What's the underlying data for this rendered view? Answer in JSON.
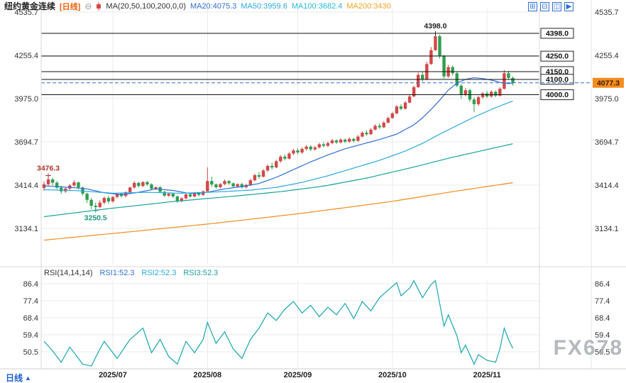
{
  "header": {
    "symbol": "纽约黄金连续",
    "period_tag": "[日线]",
    "period_color": "#ee5f0a",
    "collapse_icon": "⊖",
    "ma_settings": "MA(20,50,100,200,0,0)",
    "ma_values": [
      {
        "label": "MA20:4075.3",
        "color": "#2f6fd4"
      },
      {
        "label": "MA50:3959.6",
        "color": "#29a9e0"
      },
      {
        "label": "MA100:3682.4",
        "color": "#25b8d8"
      },
      {
        "label": "MA200:3430",
        "color": "#f5a421"
      }
    ]
  },
  "toolbar": {
    "icons": [
      {
        "name": "grid-layout-icon",
        "glyph": "⊞"
      },
      {
        "name": "split-layout-icon",
        "glyph": "⊟"
      },
      {
        "name": "panel-layout-icon",
        "glyph": "◫"
      },
      {
        "name": "collapse-panel-icon",
        "glyph": "▶"
      }
    ]
  },
  "rsi_header": {
    "title": "RSI(14,14,14)",
    "values": [
      {
        "label": "RSI1:52.3",
        "color": "#2f6fd4"
      },
      {
        "label": "RSI2:52.3",
        "color": "#29a9e0"
      },
      {
        "label": "RSI3:52.3",
        "color": "#17a29b"
      }
    ]
  },
  "bottom_tab": {
    "label": "日线",
    "arrow": "▲"
  },
  "watermark": "FX678",
  "chart_data": {
    "type": "candlestick",
    "symbol": "纽约黄金连续",
    "period": "日线",
    "x_labels": [
      "2025/07",
      "2025/08",
      "2025/09",
      "2025/10",
      "2025/11"
    ],
    "x_label_indices": [
      16,
      38,
      59,
      81,
      103
    ],
    "price_axis_ticks": [
      "4535.7",
      "4255.4",
      "3975.0",
      "3694.7",
      "3414.4",
      "3134.1"
    ],
    "hlines": [
      "4398.0",
      "4250.0",
      "4150.0",
      "4100.0",
      "4000.0"
    ],
    "current_price": "4077.3",
    "colors": {
      "up": "#d34848",
      "down": "#2f9e50",
      "grid": "#ebebeb",
      "hline": "#111111",
      "current": "#2f6fd4",
      "current_bg": "#f78c1f"
    },
    "candles_ohlc": [
      [
        3395,
        3440,
        3378,
        3420
      ],
      [
        3420,
        3476.3,
        3408,
        3452
      ],
      [
        3452,
        3462,
        3414,
        3430
      ],
      [
        3430,
        3441,
        3388,
        3398
      ],
      [
        3398,
        3410,
        3358,
        3374
      ],
      [
        3374,
        3401,
        3364,
        3392
      ],
      [
        3392,
        3422,
        3380,
        3412
      ],
      [
        3412,
        3446,
        3404,
        3432
      ],
      [
        3432,
        3436,
        3388,
        3399
      ],
      [
        3399,
        3405,
        3348,
        3359
      ],
      [
        3359,
        3366,
        3299,
        3319
      ],
      [
        3319,
        3331,
        3259,
        3281
      ],
      [
        3281,
        3301,
        3250.5,
        3272
      ],
      [
        3272,
        3316,
        3264,
        3301
      ],
      [
        3301,
        3341,
        3289,
        3331
      ],
      [
        3331,
        3346,
        3294,
        3309
      ],
      [
        3309,
        3344,
        3301,
        3338
      ],
      [
        3338,
        3365,
        3328,
        3359
      ],
      [
        3359,
        3366,
        3334,
        3344
      ],
      [
        3344,
        3374,
        3336,
        3369
      ],
      [
        3369,
        3404,
        3360,
        3399
      ],
      [
        3399,
        3440,
        3391,
        3429
      ],
      [
        3429,
        3436,
        3399,
        3409
      ],
      [
        3409,
        3440,
        3401,
        3434
      ],
      [
        3434,
        3441,
        3409,
        3419
      ],
      [
        3419,
        3426,
        3381,
        3391
      ],
      [
        3391,
        3406,
        3382,
        3401
      ],
      [
        3401,
        3407,
        3362,
        3371
      ],
      [
        3371,
        3377,
        3337,
        3346
      ],
      [
        3346,
        3366,
        3338,
        3359
      ],
      [
        3359,
        3365,
        3331,
        3341
      ],
      [
        3341,
        3347,
        3301,
        3311
      ],
      [
        3311,
        3336,
        3303,
        3329
      ],
      [
        3329,
        3360,
        3321,
        3354
      ],
      [
        3354,
        3361,
        3332,
        3341
      ],
      [
        3341,
        3371,
        3334,
        3364
      ],
      [
        3364,
        3370,
        3341,
        3351
      ],
      [
        3351,
        3381,
        3344,
        3374
      ],
      [
        3374,
        3530,
        3368,
        3441
      ],
      [
        3441,
        3469,
        3403,
        3419
      ],
      [
        3419,
        3426,
        3391,
        3401
      ],
      [
        3401,
        3427,
        3393,
        3421
      ],
      [
        3421,
        3451,
        3414,
        3441
      ],
      [
        3441,
        3447,
        3417,
        3426
      ],
      [
        3426,
        3431,
        3397,
        3406
      ],
      [
        3406,
        3426,
        3398,
        3421
      ],
      [
        3421,
        3429,
        3391,
        3401
      ],
      [
        3401,
        3423,
        3393,
        3416
      ],
      [
        3416,
        3456,
        3409,
        3446
      ],
      [
        3446,
        3489,
        3439,
        3479
      ],
      [
        3479,
        3499,
        3456,
        3469
      ],
      [
        3469,
        3519,
        3464,
        3509
      ],
      [
        3509,
        3549,
        3499,
        3539
      ],
      [
        3539,
        3559,
        3516,
        3529
      ],
      [
        3529,
        3579,
        3524,
        3569
      ],
      [
        3569,
        3609,
        3559,
        3599
      ],
      [
        3599,
        3614,
        3574,
        3586
      ],
      [
        3586,
        3629,
        3581,
        3619
      ],
      [
        3619,
        3649,
        3609,
        3639
      ],
      [
        3639,
        3654,
        3614,
        3626
      ],
      [
        3626,
        3659,
        3618,
        3649
      ],
      [
        3649,
        3674,
        3639,
        3664
      ],
      [
        3664,
        3671,
        3634,
        3646
      ],
      [
        3646,
        3669,
        3638,
        3659
      ],
      [
        3659,
        3689,
        3651,
        3679
      ],
      [
        3679,
        3694,
        3659,
        3669
      ],
      [
        3669,
        3697,
        3661,
        3687
      ],
      [
        3687,
        3714,
        3679,
        3704
      ],
      [
        3704,
        3711,
        3681,
        3691
      ],
      [
        3691,
        3719,
        3684,
        3709
      ],
      [
        3709,
        3717,
        3687,
        3696
      ],
      [
        3696,
        3724,
        3689,
        3714
      ],
      [
        3714,
        3721,
        3691,
        3701
      ],
      [
        3701,
        3739,
        3694,
        3729
      ],
      [
        3729,
        3764,
        3724,
        3754
      ],
      [
        3754,
        3769,
        3734,
        3744
      ],
      [
        3744,
        3784,
        3739,
        3774
      ],
      [
        3774,
        3809,
        3769,
        3799
      ],
      [
        3799,
        3814,
        3779,
        3789
      ],
      [
        3789,
        3829,
        3784,
        3819
      ],
      [
        3819,
        3859,
        3814,
        3849
      ],
      [
        3849,
        3889,
        3844,
        3879
      ],
      [
        3879,
        3934,
        3874,
        3924
      ],
      [
        3924,
        3939,
        3899,
        3909
      ],
      [
        3909,
        3959,
        3904,
        3949
      ],
      [
        3949,
        3999,
        3944,
        3989
      ],
      [
        3989,
        4059,
        3984,
        4049
      ],
      [
        4049,
        4144,
        4044,
        4129
      ],
      [
        4129,
        4149,
        4084,
        4099
      ],
      [
        4099,
        4214,
        4094,
        4199
      ],
      [
        4199,
        4309,
        4194,
        4289
      ],
      [
        4289,
        4398,
        4284,
        4379
      ],
      [
        4379,
        4389,
        4234,
        4249
      ],
      [
        4249,
        4259,
        4104,
        4119
      ],
      [
        4119,
        4194,
        4109,
        4179
      ],
      [
        4179,
        4189,
        4124,
        4139
      ],
      [
        4139,
        4149,
        4049,
        4059
      ],
      [
        4059,
        4069,
        3974,
        3999
      ],
      [
        3999,
        4044,
        3989,
        4029
      ],
      [
        4029,
        4039,
        3954,
        3969
      ],
      [
        3969,
        3984,
        3886,
        3939
      ],
      [
        3939,
        3994,
        3929,
        3984
      ],
      [
        3984,
        4019,
        3974,
        4009
      ],
      [
        4009,
        4024,
        3979,
        3989
      ],
      [
        3989,
        4029,
        3981,
        4019
      ],
      [
        4019,
        4027,
        3984,
        3994
      ],
      [
        3994,
        4049,
        3987,
        4039
      ],
      [
        4039,
        4159,
        4034,
        4139
      ],
      [
        4139,
        4154,
        4099,
        4109
      ],
      [
        4109,
        4119,
        4059,
        4077.3
      ]
    ],
    "ma_lines": [
      {
        "name": "MA20",
        "color": "#2f6fd4",
        "points": [
          [
            0,
            3410
          ],
          [
            6,
            3400
          ],
          [
            10,
            3390
          ],
          [
            14,
            3365
          ],
          [
            18,
            3352
          ],
          [
            22,
            3368
          ],
          [
            26,
            3390
          ],
          [
            30,
            3380
          ],
          [
            34,
            3360
          ],
          [
            38,
            3368
          ],
          [
            42,
            3390
          ],
          [
            46,
            3405
          ],
          [
            50,
            3425
          ],
          [
            54,
            3465
          ],
          [
            58,
            3515
          ],
          [
            62,
            3565
          ],
          [
            66,
            3610
          ],
          [
            70,
            3650
          ],
          [
            74,
            3680
          ],
          [
            78,
            3710
          ],
          [
            82,
            3745
          ],
          [
            86,
            3805
          ],
          [
            88,
            3850
          ],
          [
            90,
            3905
          ],
          [
            92,
            3965
          ],
          [
            94,
            4030
          ],
          [
            96,
            4075
          ],
          [
            98,
            4100
          ],
          [
            100,
            4110
          ],
          [
            102,
            4105
          ],
          [
            104,
            4095
          ],
          [
            106,
            4080
          ],
          [
            108,
            4072
          ],
          [
            109,
            4075.3
          ]
        ]
      },
      {
        "name": "MA50",
        "color": "#29a9e0",
        "points": [
          [
            0,
            3385
          ],
          [
            8,
            3378
          ],
          [
            16,
            3362
          ],
          [
            24,
            3368
          ],
          [
            32,
            3362
          ],
          [
            40,
            3370
          ],
          [
            48,
            3382
          ],
          [
            54,
            3400
          ],
          [
            60,
            3432
          ],
          [
            66,
            3475
          ],
          [
            72,
            3525
          ],
          [
            78,
            3575
          ],
          [
            84,
            3635
          ],
          [
            88,
            3685
          ],
          [
            92,
            3745
          ],
          [
            96,
            3800
          ],
          [
            100,
            3855
          ],
          [
            104,
            3905
          ],
          [
            107,
            3938
          ],
          [
            109,
            3959.6
          ]
        ]
      },
      {
        "name": "MA100",
        "color": "#17a29b",
        "points": [
          [
            0,
            3210
          ],
          [
            15,
            3262
          ],
          [
            30,
            3308
          ],
          [
            45,
            3345
          ],
          [
            55,
            3372
          ],
          [
            65,
            3408
          ],
          [
            75,
            3460
          ],
          [
            85,
            3525
          ],
          [
            95,
            3595
          ],
          [
            103,
            3645
          ],
          [
            109,
            3682.4
          ]
        ]
      },
      {
        "name": "MA200",
        "color": "#ef8d1e",
        "points": [
          [
            0,
            3058
          ],
          [
            20,
            3112
          ],
          [
            40,
            3168
          ],
          [
            60,
            3232
          ],
          [
            80,
            3305
          ],
          [
            95,
            3372
          ],
          [
            109,
            3430
          ]
        ]
      }
    ],
    "annotations": [
      {
        "index": 1,
        "price": 3476.3,
        "label": "3476.3",
        "placement": "above",
        "color": "#b03226"
      },
      {
        "index": 12,
        "price": 3250.5,
        "label": "3250.5",
        "placement": "below",
        "color": "#18997f"
      },
      {
        "index": 91,
        "price": 4398.0,
        "label": "4398.0",
        "placement": "above",
        "color": "#222222"
      }
    ],
    "rsi": {
      "ticks": [
        "86.4",
        "77.4",
        "68.4",
        "59.4",
        "50.5"
      ],
      "color": "#18a5b0",
      "points": [
        [
          0,
          56
        ],
        [
          2,
          51
        ],
        [
          4,
          45
        ],
        [
          6,
          53
        ],
        [
          9,
          44
        ],
        [
          11,
          43
        ],
        [
          13,
          52
        ],
        [
          14,
          56
        ],
        [
          17,
          47
        ],
        [
          20,
          57
        ],
        [
          23,
          63
        ],
        [
          25,
          50
        ],
        [
          27,
          57
        ],
        [
          29,
          48
        ],
        [
          31,
          44
        ],
        [
          33,
          56
        ],
        [
          35,
          50
        ],
        [
          37,
          57
        ],
        [
          38,
          66
        ],
        [
          40,
          55
        ],
        [
          42,
          61
        ],
        [
          44,
          52
        ],
        [
          46,
          47
        ],
        [
          48,
          57
        ],
        [
          50,
          63
        ],
        [
          52,
          71
        ],
        [
          54,
          67
        ],
        [
          56,
          73
        ],
        [
          58,
          77
        ],
        [
          60,
          71
        ],
        [
          62,
          75
        ],
        [
          64,
          69
        ],
        [
          66,
          74
        ],
        [
          68,
          70
        ],
        [
          70,
          76
        ],
        [
          72,
          68
        ],
        [
          74,
          77
        ],
        [
          76,
          72
        ],
        [
          78,
          79
        ],
        [
          80,
          83
        ],
        [
          82,
          87
        ],
        [
          83,
          80
        ],
        [
          85,
          84
        ],
        [
          86,
          88
        ],
        [
          88,
          79
        ],
        [
          90,
          86
        ],
        [
          91,
          88
        ],
        [
          92,
          76
        ],
        [
          93,
          64
        ],
        [
          94,
          70
        ],
        [
          96,
          59
        ],
        [
          97,
          50
        ],
        [
          98,
          54
        ],
        [
          100,
          44
        ],
        [
          101,
          49
        ],
        [
          103,
          46
        ],
        [
          105,
          45
        ],
        [
          106,
          52
        ],
        [
          107,
          63
        ],
        [
          108,
          57
        ],
        [
          109,
          52.3
        ]
      ]
    }
  }
}
